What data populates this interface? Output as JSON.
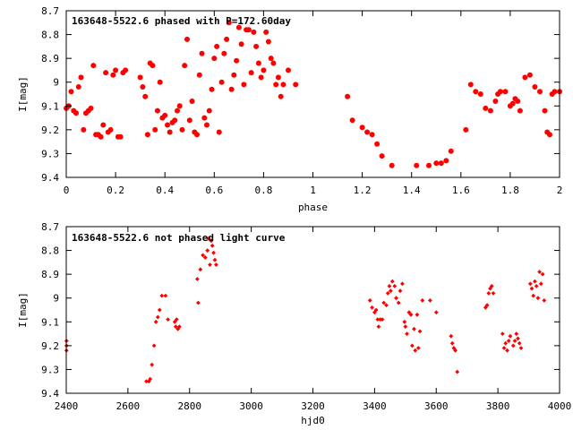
{
  "chart_data": [
    {
      "type": "scatter",
      "title": "163648-5522.6 phased with P=172.60day",
      "xlabel": "phase",
      "ylabel": "I[mag]",
      "xlim": [
        0,
        2
      ],
      "ylim": [
        9.4,
        8.7
      ],
      "y_inverted": true,
      "x_ticks": [
        0,
        0.2,
        0.4,
        0.6,
        0.8,
        1,
        1.2,
        1.4,
        1.6,
        1.8,
        2
      ],
      "x_tick_labels": [
        "0",
        "0.2",
        "0.4",
        "0.6",
        "0.8",
        "1",
        "1.2",
        "1.4",
        "1.6",
        "1.8",
        "2"
      ],
      "y_ticks": [
        8.7,
        8.8,
        8.9,
        9,
        9.1,
        9.2,
        9.3,
        9.4
      ],
      "y_tick_labels": [
        "8.7",
        "8.8",
        "8.9",
        "9",
        "9.1",
        "9.2",
        "9.3",
        "9.4"
      ],
      "grid": false,
      "marker": "filled circle, red",
      "color": "#ff0000",
      "x": [
        0.0,
        0.01,
        0.02,
        0.03,
        0.04,
        0.05,
        0.06,
        0.07,
        0.08,
        0.09,
        0.1,
        0.11,
        0.12,
        0.13,
        0.14,
        0.15,
        0.16,
        0.17,
        0.18,
        0.19,
        0.2,
        0.21,
        0.22,
        0.23,
        0.24,
        0.3,
        0.31,
        0.32,
        0.33,
        0.34,
        0.35,
        0.36,
        0.37,
        0.38,
        0.39,
        0.4,
        0.41,
        0.42,
        0.43,
        0.44,
        0.45,
        0.46,
        0.47,
        0.48,
        0.49,
        0.5,
        0.51,
        0.52,
        0.53,
        0.54,
        0.55,
        0.56,
        0.57,
        0.58,
        0.59,
        0.6,
        0.61,
        0.62,
        0.63,
        0.64,
        0.65,
        0.66,
        0.67,
        0.68,
        0.69,
        0.7,
        0.71,
        0.72,
        0.73,
        0.74,
        0.75,
        0.76,
        0.77,
        0.78,
        0.79,
        0.8,
        0.81,
        0.82,
        0.83,
        0.84,
        0.85,
        0.86,
        0.87,
        0.88,
        0.9,
        0.93,
        1.14,
        1.16,
        1.2,
        1.22,
        1.24,
        1.26,
        1.28,
        1.32,
        1.42,
        1.47,
        1.5,
        1.52,
        1.54,
        1.56,
        1.62,
        1.64,
        1.66,
        1.68,
        1.7,
        1.72,
        1.74,
        1.75,
        1.76,
        1.78,
        1.8,
        1.81,
        1.82,
        1.83,
        1.84,
        1.86,
        1.88,
        1.9,
        1.92,
        1.94,
        1.95,
        1.96,
        1.97,
        1.98,
        2.0
      ],
      "y": [
        9.11,
        9.1,
        9.04,
        9.12,
        9.13,
        9.02,
        8.98,
        9.2,
        9.13,
        9.12,
        9.11,
        8.93,
        9.22,
        9.22,
        9.23,
        9.18,
        8.96,
        9.21,
        9.2,
        8.97,
        8.95,
        9.23,
        9.23,
        8.96,
        8.95,
        8.98,
        9.02,
        9.06,
        9.22,
        8.92,
        8.93,
        9.2,
        9.12,
        9.0,
        9.15,
        9.14,
        9.18,
        9.21,
        9.17,
        9.16,
        9.12,
        9.1,
        9.2,
        8.93,
        8.82,
        9.16,
        9.08,
        9.21,
        9.22,
        8.97,
        8.88,
        9.15,
        9.18,
        9.12,
        9.03,
        8.9,
        8.85,
        9.21,
        9.0,
        8.88,
        8.82,
        8.75,
        9.03,
        8.97,
        8.91,
        8.77,
        8.84,
        9.01,
        8.78,
        8.78,
        8.96,
        8.79,
        8.85,
        8.92,
        8.98,
        8.95,
        8.79,
        8.83,
        8.9,
        8.92,
        9.01,
        8.98,
        9.06,
        9.01,
        8.95,
        9.01,
        9.06,
        9.16,
        9.19,
        9.21,
        9.22,
        9.26,
        9.31,
        9.35,
        9.35,
        9.35,
        9.34,
        9.34,
        9.33,
        9.29,
        9.2,
        9.01,
        9.04,
        9.05,
        9.11,
        9.12,
        9.08,
        9.05,
        9.04,
        9.04,
        9.1,
        9.09,
        9.07,
        9.08,
        9.12,
        8.98,
        8.97,
        9.02,
        9.04,
        9.12,
        9.21,
        9.22,
        9.05,
        9.04,
        9.04
      ]
    },
    {
      "type": "scatter",
      "title": "163648-5522.6 not phased light curve",
      "xlabel": "hjd0",
      "ylabel": "I[mag]",
      "xlim": [
        2400,
        4000
      ],
      "ylim": [
        9.4,
        8.7
      ],
      "y_inverted": true,
      "x_ticks": [
        2400,
        2600,
        2800,
        3000,
        3200,
        3400,
        3600,
        3800,
        4000
      ],
      "x_tick_labels": [
        "2400",
        "2600",
        "2800",
        "3000",
        "3200",
        "3400",
        "3600",
        "3800",
        "4000"
      ],
      "y_ticks": [
        8.7,
        8.8,
        8.9,
        9,
        9.1,
        9.2,
        9.3,
        9.4
      ],
      "y_tick_labels": [
        "8.7",
        "8.8",
        "8.9",
        "9",
        "9.1",
        "9.2",
        "9.3",
        "9.4"
      ],
      "grid": false,
      "marker": "small filled diamond, red",
      "color": "#ff0000",
      "x": [
        2401,
        2401,
        2401,
        2660,
        2668,
        2672,
        2678,
        2685,
        2691,
        2697,
        2703,
        2710,
        2722,
        2730,
        2752,
        2755,
        2758,
        2762,
        2767,
        2825,
        2828,
        2835,
        2843,
        2851,
        2858,
        2862,
        2866,
        2870,
        2874,
        2878,
        2882,
        2886,
        3385,
        3392,
        3400,
        3405,
        3410,
        3413,
        3418,
        3425,
        3430,
        3438,
        3443,
        3448,
        3452,
        3458,
        3465,
        3470,
        3478,
        3483,
        3490,
        3497,
        3500,
        3505,
        3512,
        3518,
        3522,
        3528,
        3532,
        3538,
        3542,
        3547,
        3555,
        3580,
        3600,
        3648,
        3652,
        3657,
        3662,
        3668,
        3760,
        3765,
        3770,
        3775,
        3780,
        3785,
        3815,
        3820,
        3825,
        3830,
        3835,
        3840,
        3850,
        3855,
        3860,
        3865,
        3870,
        3875,
        3905,
        3910,
        3915,
        3920,
        3925,
        3930,
        3935,
        3940,
        3945,
        3950
      ],
      "y": [
        9.18,
        9.2,
        9.22,
        9.35,
        9.35,
        9.34,
        9.28,
        9.2,
        9.1,
        9.08,
        9.05,
        8.99,
        8.99,
        9.09,
        9.1,
        9.12,
        9.09,
        9.13,
        9.12,
        8.92,
        9.02,
        8.88,
        8.82,
        8.83,
        8.8,
        8.75,
        8.86,
        8.76,
        8.78,
        8.81,
        8.84,
        8.86,
        9.01,
        9.04,
        9.06,
        9.05,
        9.09,
        9.12,
        9.09,
        9.09,
        9.02,
        9.03,
        8.98,
        8.95,
        8.97,
        8.93,
        8.95,
        9.0,
        9.02,
        8.97,
        8.94,
        9.1,
        9.12,
        9.15,
        9.06,
        9.07,
        9.2,
        9.13,
        9.22,
        9.07,
        9.21,
        9.14,
        9.01,
        9.01,
        9.06,
        9.16,
        9.19,
        9.21,
        9.22,
        9.31,
        9.04,
        9.03,
        8.98,
        8.96,
        8.95,
        8.98,
        9.15,
        9.21,
        9.19,
        9.22,
        9.18,
        9.16,
        9.2,
        9.18,
        9.15,
        9.17,
        9.19,
        9.21,
        8.94,
        8.96,
        8.99,
        8.93,
        8.95,
        9.0,
        8.89,
        8.94,
        8.9,
        9.01
      ]
    }
  ]
}
